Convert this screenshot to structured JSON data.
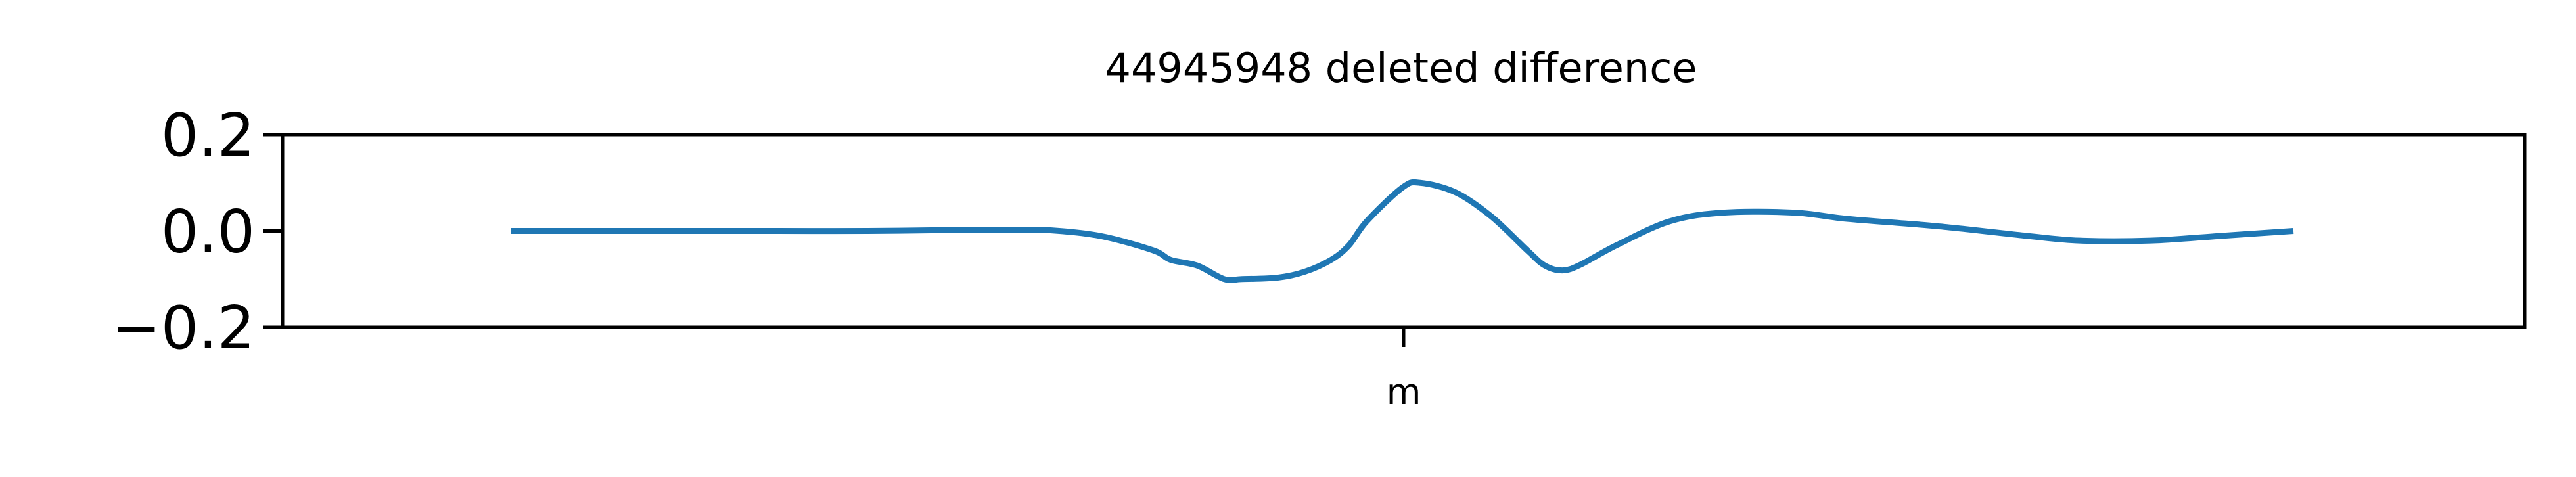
{
  "chart_data": {
    "type": "line",
    "title": "44945948 deleted difference",
    "xlabel": "",
    "ylabel": "",
    "ylim": [
      -0.2,
      0.2
    ],
    "yticks": [
      {
        "value": 0.2,
        "label": "0.2"
      },
      {
        "value": 0.0,
        "label": "0.0"
      },
      {
        "value": -0.2,
        "label": "−0.2"
      }
    ],
    "xtick": {
      "position": 0.5,
      "label": "m"
    },
    "grid": false,
    "colors": {
      "line": "#1f77b4",
      "axes": "#000000",
      "background": "#ffffff"
    },
    "series": [
      {
        "x": [
          0.0,
          0.05,
          0.1,
          0.15,
          0.2,
          0.25,
          0.28,
          0.3,
          0.33,
          0.36,
          0.37,
          0.385,
          0.4,
          0.41,
          0.43,
          0.445,
          0.46,
          0.47,
          0.48,
          0.5,
          0.51,
          0.53,
          0.55,
          0.57,
          0.58,
          0.59,
          0.6,
          0.62,
          0.65,
          0.68,
          0.72,
          0.75,
          0.8,
          0.85,
          0.88,
          0.92,
          0.96,
          1.0
        ],
        "y": [
          0.0,
          0.0,
          0.0,
          0.0,
          0.0,
          0.002,
          0.002,
          0.002,
          -0.01,
          -0.04,
          -0.06,
          -0.072,
          -0.1,
          -0.1,
          -0.097,
          -0.085,
          -0.06,
          -0.03,
          0.02,
          0.09,
          0.1,
          0.08,
          0.03,
          -0.04,
          -0.072,
          -0.082,
          -0.07,
          -0.03,
          0.02,
          0.038,
          0.038,
          0.025,
          0.01,
          -0.01,
          -0.02,
          -0.02,
          -0.01,
          0.0
        ]
      }
    ]
  }
}
